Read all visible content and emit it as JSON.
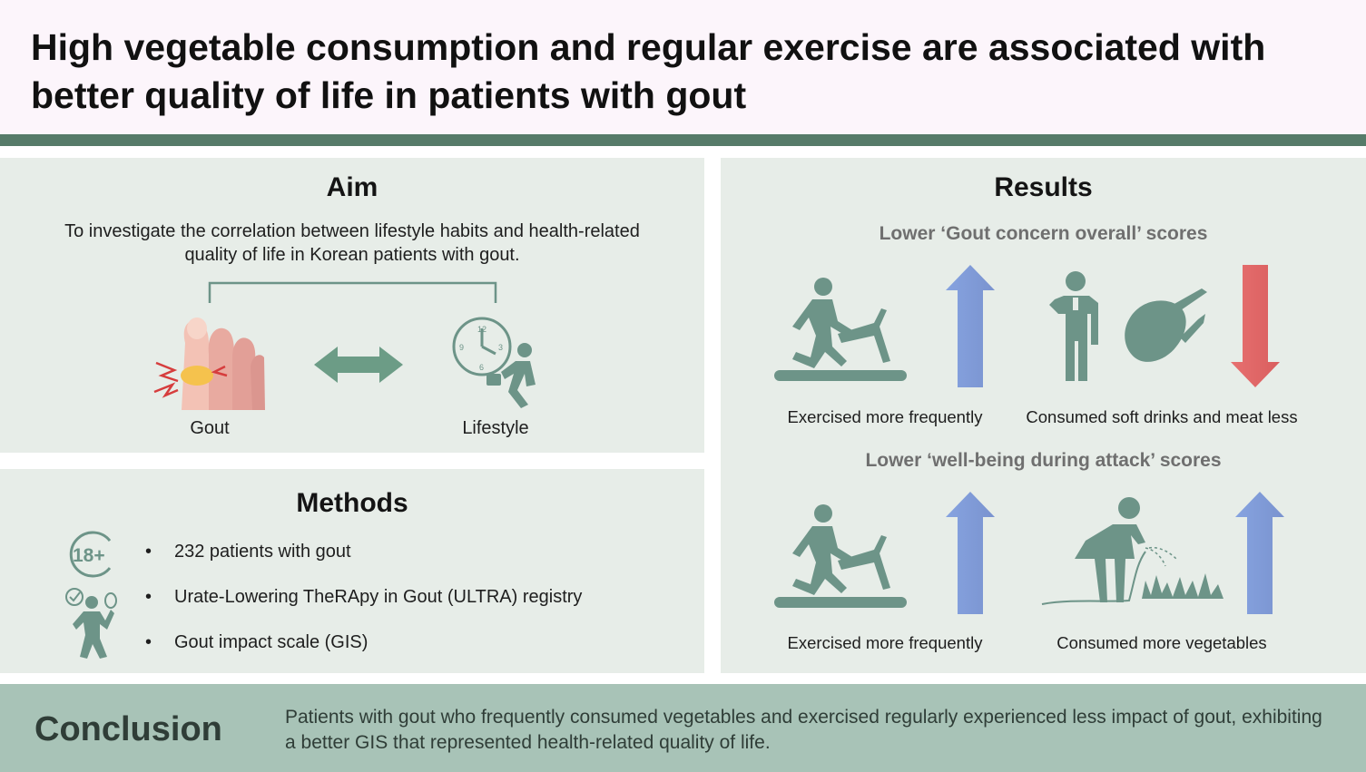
{
  "title": "High vegetable consumption and regular exercise are associated with better quality of life in patients with gout",
  "aim": {
    "heading": "Aim",
    "text": "To investigate the correlation between lifestyle habits and health-related quality of life in Korean patients with gout.",
    "left_label": "Gout",
    "right_label": "Lifestyle"
  },
  "methods": {
    "heading": "Methods",
    "age_badge": "18+",
    "bullets": [
      "232 patients with gout",
      "Urate-Lowering TheRApy in Gout (ULTRA) registry",
      "Gout impact scale (GIS)"
    ]
  },
  "results": {
    "heading": "Results",
    "sections": [
      {
        "subheading": "Lower ‘Gout concern overall’ scores",
        "items": [
          {
            "caption": "Exercised more frequently",
            "direction": "up",
            "icon": "treadmill-runner"
          },
          {
            "caption": "Consumed soft drinks and meat less",
            "direction": "down",
            "icon": "drink-and-meat"
          }
        ]
      },
      {
        "subheading": "Lower ‘well-being during attack’ scores",
        "items": [
          {
            "caption": "Exercised more frequently",
            "direction": "up",
            "icon": "treadmill-runner"
          },
          {
            "caption": "Consumed more vegetables",
            "direction": "up",
            "icon": "vegetable-garden"
          }
        ]
      }
    ]
  },
  "conclusion": {
    "heading": "Conclusion",
    "text": "Patients with gout who frequently consumed vegetables and exercised regularly experienced less impact of gout, exhibiting a better GIS that represented health-related quality of life."
  },
  "colors": {
    "accent_green": "#567b69",
    "icon_teal": "#6d9488",
    "panel_bg": "#e7ede8",
    "conclusion_bg": "#a8c3b7",
    "arrow_up": "#7f9bd8",
    "arrow_down": "#df6767",
    "gout_highlight": "#f5c24d"
  }
}
